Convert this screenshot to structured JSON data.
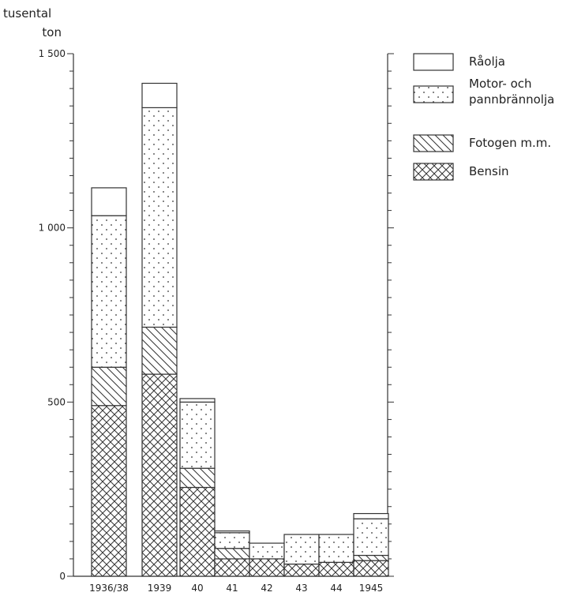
{
  "chart_data": {
    "type": "bar",
    "stacked": true,
    "ylabel_line1": "tusental",
    "ylabel_line2": "ton",
    "ylim": [
      0,
      1500
    ],
    "yticks": [
      {
        "value": 0,
        "label": "0"
      },
      {
        "value": 500,
        "label": "500"
      },
      {
        "value": 1000,
        "label": "1 000"
      },
      {
        "value": 1500,
        "label": "1 500"
      }
    ],
    "minor_tick_step": 50,
    "grid": false,
    "legend_position": "top-right",
    "categories": [
      "1936/38",
      "1939",
      "40",
      "41",
      "42",
      "43",
      "44",
      "1945"
    ],
    "series": [
      {
        "name": "Bensin",
        "pattern": "crosshatch",
        "values": [
          490,
          580,
          255,
          50,
          50,
          35,
          40,
          45
        ]
      },
      {
        "name": "Fotogen m.m.",
        "pattern": "diagonal",
        "values": [
          110,
          135,
          55,
          30,
          0,
          0,
          0,
          15
        ]
      },
      {
        "name": "Motor- och pannbrännolja",
        "pattern": "dots",
        "values": [
          435,
          630,
          190,
          45,
          45,
          85,
          80,
          105
        ]
      },
      {
        "name": "Råolja",
        "pattern": "blank",
        "values": [
          80,
          70,
          10,
          5,
          0,
          0,
          0,
          15
        ]
      }
    ],
    "legend_order": [
      "Råolja",
      "Motor- och pannbrännolja",
      "Fotogen m.m.",
      "Bensin"
    ],
    "legend_labels": {
      "Råolja": [
        "Råolja"
      ],
      "Motor- och pannbrännolja": [
        "Motor- och",
        "pannbrännolja"
      ],
      "Fotogen m.m.": [
        "Fotogen m.m."
      ],
      "Bensin": [
        "Bensin"
      ]
    }
  }
}
